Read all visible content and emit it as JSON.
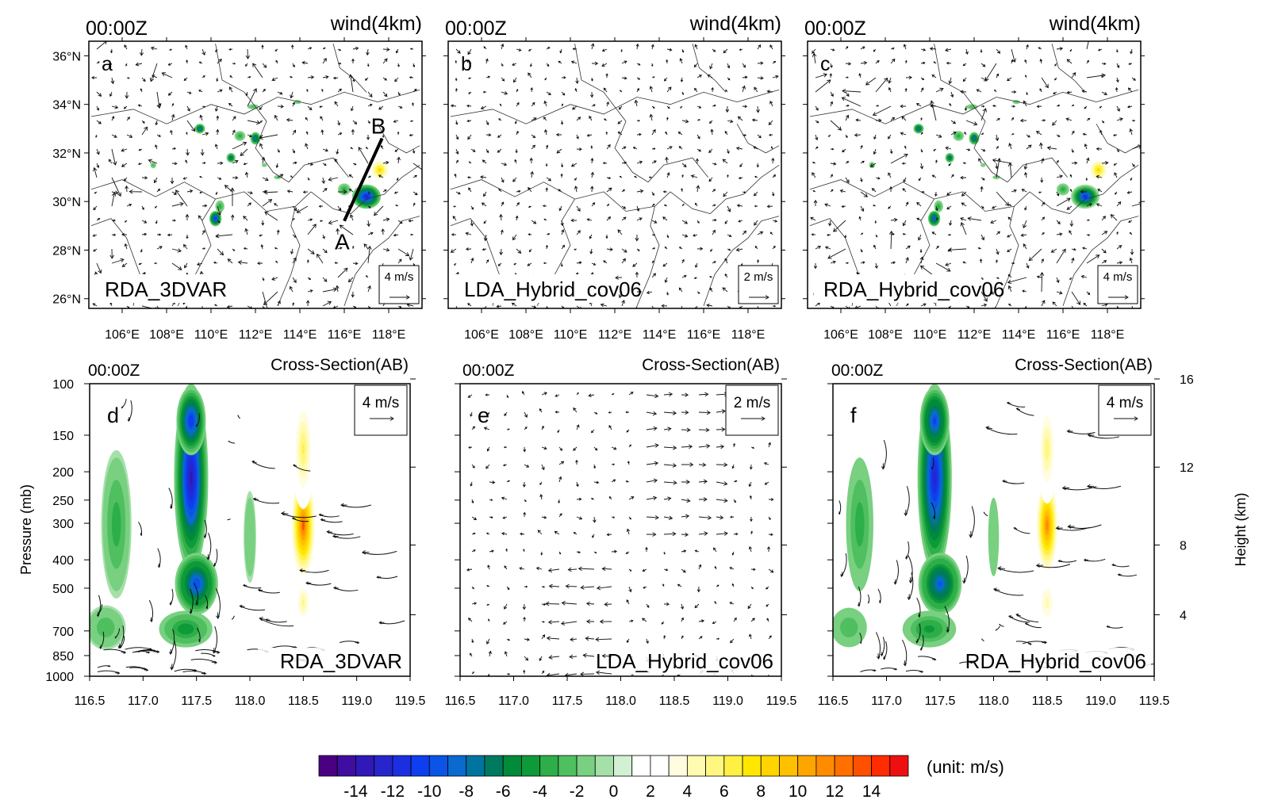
{
  "chart_data": {
    "type": "multi-panel contour map and cross-section",
    "colorbar": {
      "unit_label": "(unit: m/s)",
      "tick_labels": [
        "-14",
        "-12",
        "-10",
        "-8",
        "-6",
        "-4",
        "-2",
        "0",
        "2",
        "4",
        "6",
        "8",
        "10",
        "12",
        "14"
      ],
      "tick_values": [
        -14,
        -12,
        -10,
        -8,
        -6,
        -4,
        -2,
        0,
        2,
        4,
        6,
        8,
        10,
        12,
        14
      ],
      "levels": [
        -16,
        -15,
        -14,
        -13,
        -12,
        -11,
        -10,
        -9,
        -8,
        -7,
        -6,
        -5,
        -4,
        -3,
        -2,
        -1,
        0,
        1,
        2,
        3,
        4,
        5,
        6,
        7,
        8,
        9,
        10,
        11,
        12,
        13,
        14,
        15,
        16
      ],
      "colors": [
        "#4B0082",
        "#3F0EA0",
        "#3019B8",
        "#2626CC",
        "#1B2EE0",
        "#0F3EEE",
        "#0A55E6",
        "#0A6AD0",
        "#00749E",
        "#007A5E",
        "#008A3A",
        "#0F9A3A",
        "#2DAE48",
        "#4FBF60",
        "#78D080",
        "#A4E0A8",
        "#D2F0D2",
        "#FFFFFF",
        "#FFFFFF",
        "#FFFCE0",
        "#FFFBB0",
        "#FFF780",
        "#FFF044",
        "#FFE700",
        "#FFD400",
        "#FFC000",
        "#FFA500",
        "#FF8C00",
        "#FF7000",
        "#FF5000",
        "#FF2C00",
        "#EE1010"
      ]
    },
    "map_panels": [
      {
        "letter": "a",
        "time": "00:00Z",
        "field": "wind(4km)",
        "experiment": "RDA_3DVAR",
        "ref_vector": "4 m/s",
        "section_line": {
          "start": "A",
          "end": "B",
          "lon": [
            116.0,
            117.7
          ],
          "lat": [
            29.2,
            32.6
          ]
        }
      },
      {
        "letter": "b",
        "time": "00:00Z",
        "field": "wind(4km)",
        "experiment": "LDA_Hybrid_cov06",
        "ref_vector": "2 m/s"
      },
      {
        "letter": "c",
        "time": "00:00Z",
        "field": "wind(4km)",
        "experiment": "RDA_Hybrid_cov06",
        "ref_vector": "4 m/s"
      }
    ],
    "map_axes": {
      "xlim": [
        104.5,
        119.5
      ],
      "ylim": [
        25.6,
        36.6
      ],
      "x_ticks": [
        106,
        108,
        110,
        112,
        114,
        116,
        118
      ],
      "x_tick_labels": [
        "106°E",
        "108°E",
        "110°E",
        "112°E",
        "114°E",
        "116°E",
        "118°E"
      ],
      "y_ticks": [
        26,
        28,
        30,
        32,
        34,
        36
      ],
      "y_tick_labels": [
        "26°N",
        "28°N",
        "30°N",
        "32°N",
        "34°N",
        "36°N"
      ]
    },
    "section_panels": [
      {
        "letter": "d",
        "time": "00:00Z",
        "field": "Cross-Section(AB)",
        "experiment": "RDA_3DVAR",
        "ref_vector": "4 m/s"
      },
      {
        "letter": "e",
        "time": "00:00Z",
        "field": "Cross-Section(AB)",
        "experiment": "LDA_Hybrid_cov06",
        "ref_vector": "2 m/s"
      },
      {
        "letter": "f",
        "time": "00:00Z",
        "field": "Cross-Section(AB)",
        "experiment": "RDA_Hybrid_cov06",
        "ref_vector": "4 m/s"
      }
    ],
    "section_axes": {
      "xlabel": "",
      "ylabel": "Pressure (mb)",
      "y2label": "Height (km)",
      "xlim": [
        116.5,
        119.5
      ],
      "x_ticks": [
        116.5,
        117.0,
        117.5,
        118.0,
        118.5,
        119.0,
        119.5
      ],
      "x_tick_labels": [
        "116.5",
        "117.0",
        "117.5",
        "118.0",
        "118.5",
        "119.0",
        "119.5"
      ],
      "p_ticks": [
        100,
        150,
        200,
        250,
        300,
        400,
        500,
        700,
        850,
        1000
      ],
      "p_tick_labels": [
        "100",
        "150",
        "200",
        "250",
        "300",
        "400",
        "500",
        "700",
        "850",
        "1000"
      ],
      "height_ticks": [
        4,
        8,
        12,
        16
      ],
      "height_tick_labels": [
        "4",
        "8",
        "12",
        "16"
      ]
    },
    "map_anomalies": [
      {
        "lon": 117.0,
        "lat": 30.2,
        "value": -13,
        "sx": 0.65,
        "sy": 0.5
      },
      {
        "lon": 116.0,
        "lat": 30.5,
        "value": -4,
        "sx": 0.35,
        "sy": 0.3
      },
      {
        "lon": 117.6,
        "lat": 31.3,
        "value": 8,
        "sx": 0.55,
        "sy": 0.55
      },
      {
        "lon": 110.2,
        "lat": 29.3,
        "value": -11,
        "sx": 0.3,
        "sy": 0.35
      },
      {
        "lon": 110.4,
        "lat": 29.8,
        "value": -4,
        "sx": 0.25,
        "sy": 0.3
      },
      {
        "lon": 109.5,
        "lat": 33.0,
        "value": -9,
        "sx": 0.25,
        "sy": 0.22
      },
      {
        "lon": 112.0,
        "lat": 32.6,
        "value": -9,
        "sx": 0.25,
        "sy": 0.28
      },
      {
        "lon": 111.3,
        "lat": 32.7,
        "value": -4,
        "sx": 0.3,
        "sy": 0.25
      },
      {
        "lon": 110.9,
        "lat": 31.8,
        "value": -8,
        "sx": 0.22,
        "sy": 0.22
      },
      {
        "lon": 111.9,
        "lat": 33.9,
        "value": -3,
        "sx": 0.35,
        "sy": 0.15
      },
      {
        "lon": 110.6,
        "lat": 32.4,
        "value": 3,
        "sx": 0.2,
        "sy": 0.15
      },
      {
        "lon": 111.5,
        "lat": 30.6,
        "value": 3,
        "sx": 0.2,
        "sy": 0.15
      },
      {
        "lon": 113.0,
        "lat": 31.0,
        "value": -2,
        "sx": 0.3,
        "sy": 0.15
      },
      {
        "lon": 112.4,
        "lat": 31.5,
        "value": -2,
        "sx": 0.2,
        "sy": 0.15
      },
      {
        "lon": 113.2,
        "lat": 32.8,
        "value": 3,
        "sx": 0.2,
        "sy": 0.15
      },
      {
        "lon": 113.9,
        "lat": 34.1,
        "value": -2,
        "sx": 0.3,
        "sy": 0.15
      },
      {
        "lon": 107.4,
        "lat": 31.5,
        "value": -3,
        "sx": 0.18,
        "sy": 0.18
      },
      {
        "lon": 114.2,
        "lat": 32.5,
        "value": 2,
        "sx": 0.15,
        "sy": 0.12
      }
    ],
    "section_anomalies": [
      {
        "lon": 117.45,
        "p": 270,
        "value": -14,
        "sx": 0.16,
        "sy": 170
      },
      {
        "lon": 117.45,
        "p": 120,
        "value": -11,
        "sx": 0.15,
        "sy": 60
      },
      {
        "lon": 117.5,
        "p": 500,
        "value": -10,
        "sx": 0.22,
        "sy": 130
      },
      {
        "lon": 117.4,
        "p": 700,
        "value": -5,
        "sx": 0.3,
        "sy": 120
      },
      {
        "lon": 116.75,
        "p": 380,
        "value": -4,
        "sx": 0.17,
        "sy": 230
      },
      {
        "lon": 116.65,
        "p": 700,
        "value": -3,
        "sx": 0.25,
        "sy": 160
      },
      {
        "lon": 118.0,
        "p": 400,
        "value": -2,
        "sx": 0.1,
        "sy": 220
      },
      {
        "lon": 118.5,
        "p": 340,
        "value": 13,
        "sx": 0.13,
        "sy": 150
      },
      {
        "lon": 118.5,
        "p": 170,
        "value": 6,
        "sx": 0.12,
        "sy": 110
      },
      {
        "lon": 118.5,
        "p": 580,
        "value": 5,
        "sx": 0.12,
        "sy": 150
      },
      {
        "lon": 116.95,
        "p": 230,
        "value": 2,
        "sx": 0.05,
        "sy": 80
      }
    ]
  }
}
